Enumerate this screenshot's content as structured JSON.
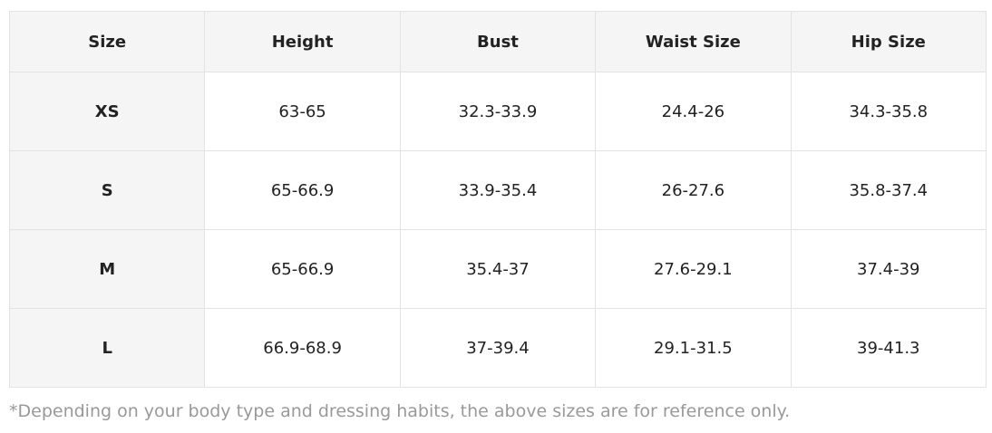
{
  "table": {
    "headers": [
      "Size",
      "Height",
      "Bust",
      "Waist Size",
      "Hip Size"
    ],
    "rows": [
      [
        "XS",
        "63-65",
        "32.3-33.9",
        "24.4-26",
        "34.3-35.8"
      ],
      [
        "S",
        "65-66.9",
        "33.9-35.4",
        "26-27.6",
        "35.8-37.4"
      ],
      [
        "M",
        "65-66.9",
        "35.4-37",
        "27.6-29.1",
        "37.4-39"
      ],
      [
        "L",
        "66.9-68.9",
        "37-39.4",
        "29.1-31.5",
        "39-41.3"
      ]
    ]
  },
  "note": "*Depending on your body type and dressing habits, the above sizes are for reference only."
}
